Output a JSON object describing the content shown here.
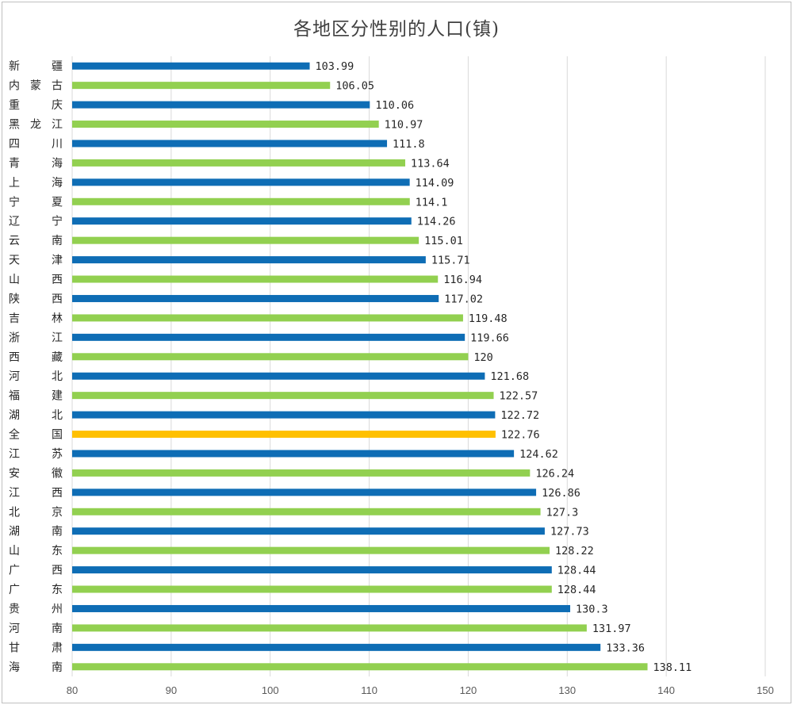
{
  "chart_data": {
    "type": "bar",
    "orientation": "horizontal",
    "title": "各地区分性别的人口(镇)",
    "xlabel": "",
    "ylabel": "",
    "xlim": [
      80,
      150
    ],
    "xticks": [
      80,
      90,
      100,
      110,
      120,
      130,
      140,
      150
    ],
    "grid": true,
    "legend": "none",
    "categories": [
      "新　疆",
      "内蒙古",
      "重　庆",
      "黑龙江",
      "四　川",
      "青　海",
      "上　海",
      "宁　夏",
      "辽　宁",
      "云　南",
      "天　津",
      "山　西",
      "陕　西",
      "吉　林",
      "浙　江",
      "西　藏",
      "河　北",
      "福　建",
      "湖　北",
      "全　国",
      "江　苏",
      "安　徽",
      "江　西",
      "北　京",
      "湖　南",
      "山　东",
      "广　西",
      "广　东",
      "贵　州",
      "河　南",
      "甘　肃",
      "海　南"
    ],
    "values": [
      103.99,
      106.05,
      110.06,
      110.97,
      111.8,
      113.64,
      114.09,
      114.1,
      114.26,
      115.01,
      115.71,
      116.94,
      117.02,
      119.48,
      119.66,
      120,
      121.68,
      122.57,
      122.72,
      122.76,
      124.62,
      126.24,
      126.86,
      127.3,
      127.73,
      128.22,
      128.44,
      128.44,
      130.3,
      131.97,
      133.36,
      138.11
    ],
    "value_labels": [
      "103.99",
      "106.05",
      "110.06",
      "110.97",
      "111.8",
      "113.64",
      "114.09",
      "114.1",
      "114.26",
      "115.01",
      "115.71",
      "116.94",
      "117.02",
      "119.48",
      "119.66",
      "120",
      "121.68",
      "122.57",
      "122.72",
      "122.76",
      "124.62",
      "126.24",
      "126.86",
      "127.3",
      "127.73",
      "128.22",
      "128.44",
      "128.44",
      "130.3",
      "131.97",
      "133.36",
      "138.11"
    ],
    "bar_colors": [
      "#0e6db5",
      "#92d050",
      "#0e6db5",
      "#92d050",
      "#0e6db5",
      "#92d050",
      "#0e6db5",
      "#92d050",
      "#0e6db5",
      "#92d050",
      "#0e6db5",
      "#92d050",
      "#0e6db5",
      "#92d050",
      "#0e6db5",
      "#92d050",
      "#0e6db5",
      "#92d050",
      "#0e6db5",
      "#ffc000",
      "#0e6db5",
      "#92d050",
      "#0e6db5",
      "#92d050",
      "#0e6db5",
      "#92d050",
      "#0e6db5",
      "#92d050",
      "#0e6db5",
      "#92d050",
      "#0e6db5",
      "#92d050"
    ],
    "grid_color": "#d9d9d9"
  }
}
